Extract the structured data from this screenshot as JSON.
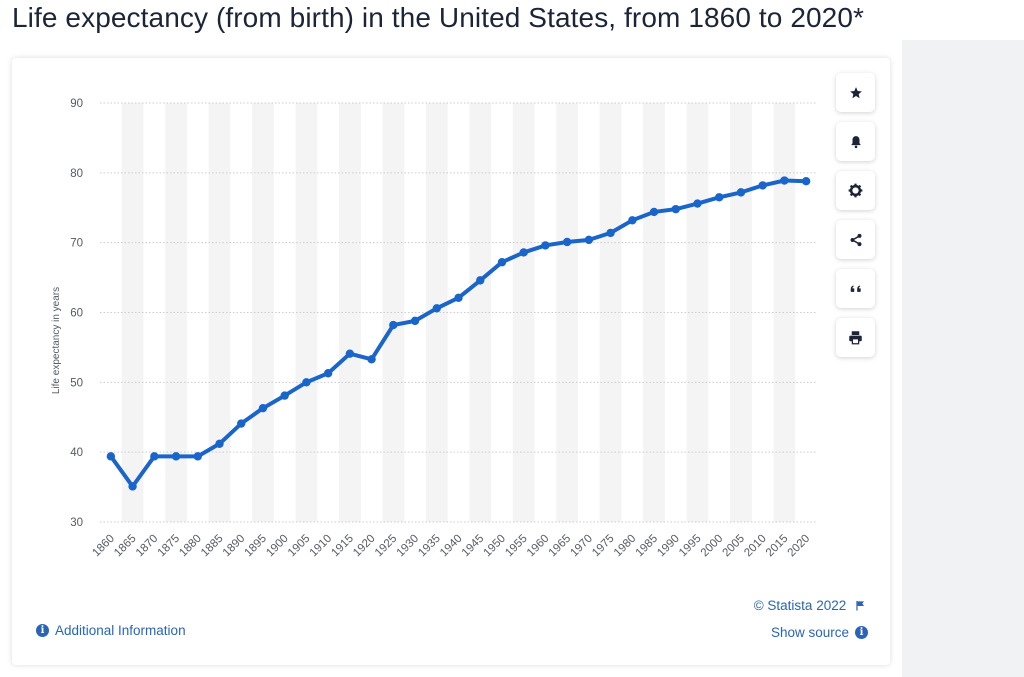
{
  "page": {
    "title": "Life expectancy (from birth) in the United States, from 1860 to 2020*"
  },
  "toolbar": {
    "buttons": [
      {
        "name": "favorite-button",
        "icon": "star-icon"
      },
      {
        "name": "notification-button",
        "icon": "bell-icon"
      },
      {
        "name": "settings-button",
        "icon": "gear-icon"
      },
      {
        "name": "share-button",
        "icon": "share-icon"
      },
      {
        "name": "cite-button",
        "icon": "quote-icon"
      },
      {
        "name": "print-button",
        "icon": "printer-icon"
      }
    ]
  },
  "footer": {
    "additional_info": "Additional Information",
    "copyright": "© Statista 2022",
    "show_source": "Show source"
  },
  "colors": {
    "line": "#1a65c9",
    "accent": "#2a64b8",
    "band": "#f4f4f5",
    "grid": "#c9ccd1"
  },
  "chart_data": {
    "type": "line",
    "title": "",
    "xlabel": "",
    "ylabel": "Life expectancy in years",
    "ylim": [
      30,
      90
    ],
    "yticks": [
      30,
      40,
      50,
      60,
      70,
      80,
      90
    ],
    "grid": true,
    "categories": [
      "1860",
      "1865",
      "1870",
      "1875",
      "1880",
      "1885",
      "1890",
      "1895",
      "1900",
      "1905",
      "1910",
      "1915",
      "1920",
      "1925",
      "1930",
      "1935",
      "1940",
      "1945",
      "1950",
      "1955",
      "1960",
      "1965",
      "1970",
      "1975",
      "1980",
      "1985",
      "1990",
      "1995",
      "2000",
      "2005",
      "2010",
      "2015",
      "2020"
    ],
    "series": [
      {
        "values": [
          39.4,
          35.1,
          39.4,
          39.4,
          39.4,
          41.2,
          44.1,
          46.3,
          48.1,
          50.0,
          51.3,
          54.1,
          53.3,
          58.2,
          58.8,
          60.6,
          62.1,
          64.6,
          67.2,
          68.6,
          69.6,
          70.1,
          70.4,
          71.4,
          73.2,
          74.4,
          74.8,
          75.6,
          76.5,
          77.2,
          78.2,
          78.9,
          78.8
        ]
      }
    ]
  }
}
